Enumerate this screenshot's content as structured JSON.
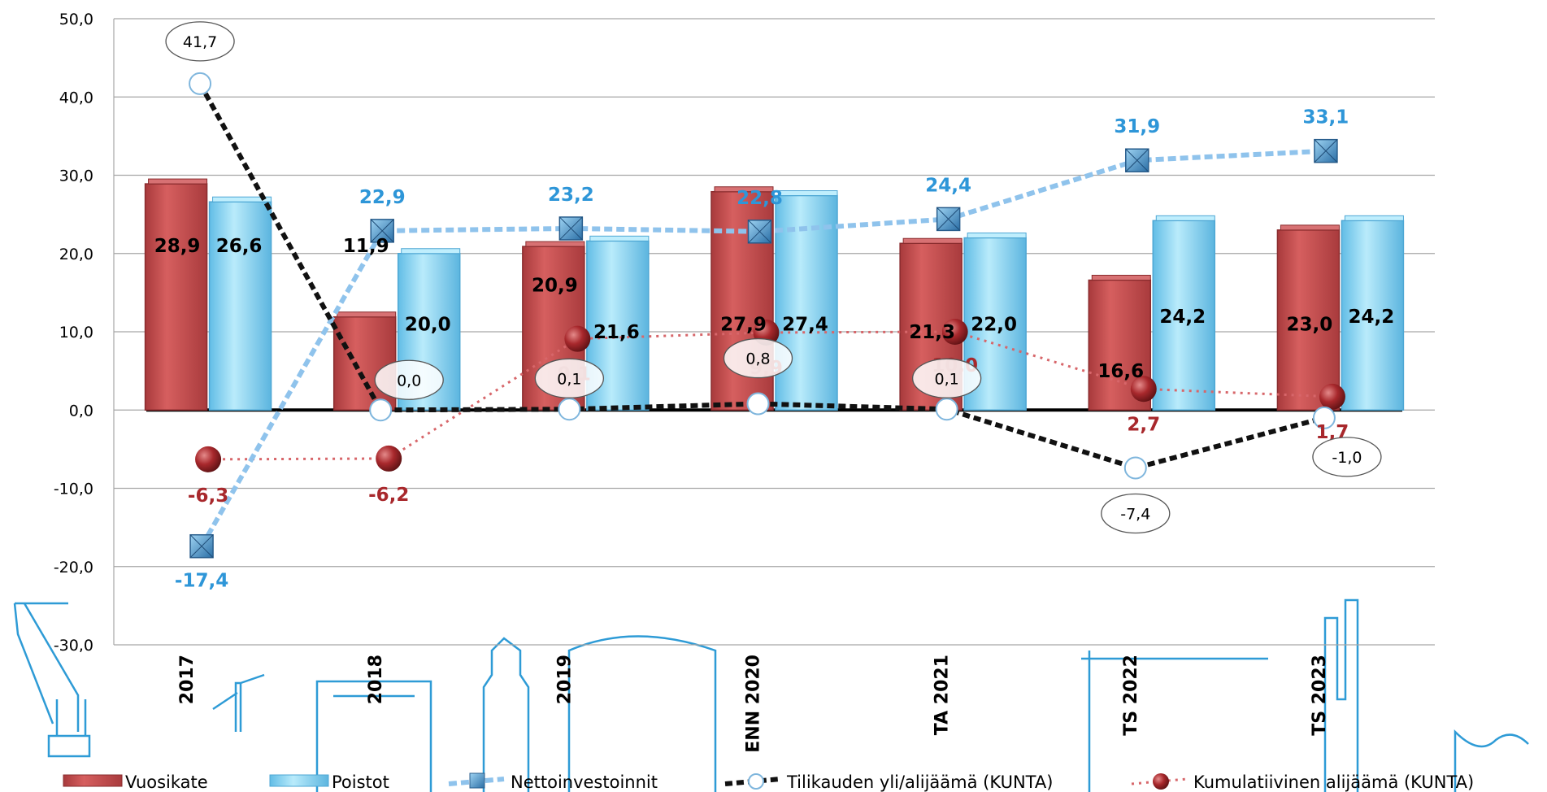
{
  "chart_data": {
    "type": "bar",
    "categories": [
      "2017",
      "2018",
      "2019",
      "ENN 2020",
      "TA 2021",
      "TS 2022",
      "TS 2023"
    ],
    "ylim": [
      -30,
      50
    ],
    "yticks": [
      -30,
      -20,
      -10,
      0,
      10,
      20,
      30,
      40,
      50
    ],
    "ytick_labels": [
      "-30,0",
      "-20,0",
      "-10,0",
      "0,0",
      "10,0",
      "20,0",
      "30,0",
      "40,0",
      "50,0"
    ],
    "grid": true,
    "legend_position": "bottom",
    "series": [
      {
        "name": "Vuosikate",
        "kind": "bar",
        "color": "#c9504f",
        "values": [
          28.9,
          11.9,
          20.9,
          27.9,
          21.3,
          16.6,
          23.0
        ],
        "labels": [
          "28,9",
          "11,9",
          "20,9",
          "27,9",
          "21,3",
          "16,6",
          "23,0"
        ]
      },
      {
        "name": "Poistot",
        "kind": "bar",
        "color": "#8fd6f2",
        "values": [
          26.6,
          20.0,
          21.6,
          27.4,
          22.0,
          24.2,
          24.2
        ],
        "labels": [
          "26,6",
          "20,0",
          "21,6",
          "27,4",
          "22,0",
          "24,2",
          "24,2"
        ]
      },
      {
        "name": "Nettoinvestoinnit",
        "kind": "line",
        "color": "#8fc3ec",
        "values": [
          -17.4,
          22.9,
          23.2,
          22.8,
          24.4,
          31.9,
          33.1
        ],
        "labels": [
          "-17,4",
          "22,9",
          "23,2",
          "22,8",
          "24,4",
          "31,9",
          "33,1"
        ]
      },
      {
        "name": "Tilikauden yli/alijäämä (KUNTA)",
        "kind": "line",
        "color": "#111111",
        "values": [
          41.7,
          0.0,
          0.1,
          0.8,
          0.1,
          -7.4,
          -1.0
        ],
        "labels": [
          "41,7",
          "0,0",
          "0,1",
          "0,8",
          "0,1",
          "-7,4",
          "-1,0"
        ]
      },
      {
        "name": "Kumulatiivinen alijäämä (KUNTA)",
        "kind": "line",
        "color": "#d7666a",
        "values": [
          -6.3,
          -6.2,
          9.1,
          9.9,
          10.0,
          2.7,
          1.7
        ],
        "labels": [
          "-6,3",
          "-6,2",
          "9,1",
          "9,9",
          "10,0",
          "2,7",
          "1,7"
        ]
      }
    ]
  }
}
